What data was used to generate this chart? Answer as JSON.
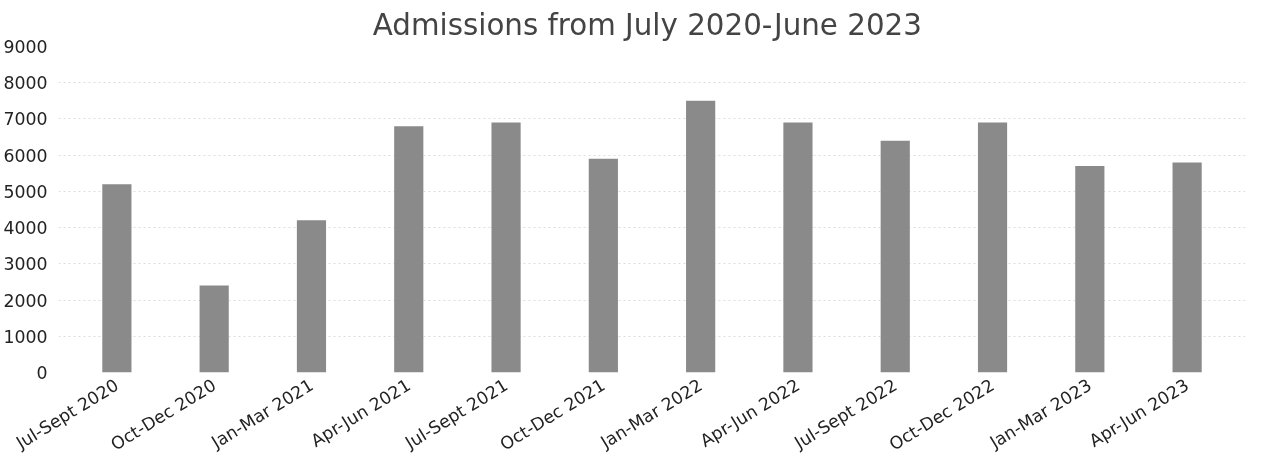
{
  "chart_data": {
    "type": "bar",
    "title": "Admissions  from July 2020-June 2023",
    "categories": [
      "Jul-Sept 2020",
      "Oct-Dec 2020",
      "Jan-Mar 2021",
      "Apr-Jun 2021",
      "Jul-Sept 2021",
      "Oct-Dec 2021",
      "Jan-Mar 2022",
      "Apr-Jun 2022",
      "Jul-Sept 2022",
      "Oct-Dec 2022",
      "Jan-Mar 2023",
      "Apr-Jun 2023"
    ],
    "values": [
      5200,
      2400,
      4200,
      6800,
      6900,
      5900,
      7500,
      6900,
      6400,
      6900,
      5700,
      5800
    ],
    "color": "#8a8a8a",
    "ylim": [
      0,
      9000
    ],
    "yticks": [
      0,
      1000,
      2000,
      3000,
      4000,
      5000,
      6000,
      7000,
      8000,
      9000
    ],
    "grid": "y"
  }
}
